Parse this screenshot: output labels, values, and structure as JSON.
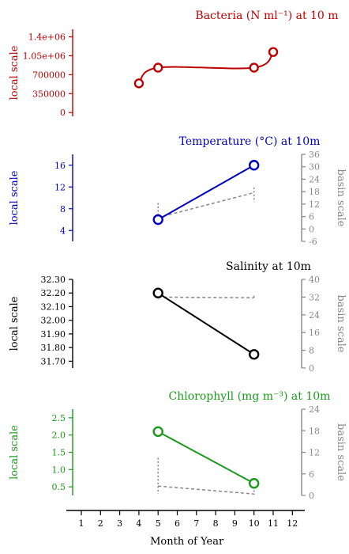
{
  "chart_data": [
    {
      "type": "line",
      "title": "Bacteria (N ml⁻¹) at 10 m",
      "ylabel": "local scale",
      "color": "#c00000",
      "ylim": [
        -70000,
        1540000
      ],
      "yticks": [
        "1.4e+06",
        "1.05e+06",
        "700000",
        "350000",
        "0"
      ],
      "ytick_values": [
        1400000,
        1050000,
        700000,
        350000,
        0
      ],
      "series": [
        {
          "x": [
            4,
            5,
            10,
            11
          ],
          "y": [
            540000,
            830000,
            830000,
            1120000
          ],
          "style": "smooth"
        }
      ]
    },
    {
      "type": "line",
      "title": "Temperature (°C) at 10m",
      "ylabel": "local scale",
      "ylabel_right": "basin scale",
      "color": "#0000c0",
      "ylim": [
        2,
        18
      ],
      "ylim_right": [
        -6,
        36
      ],
      "yticks": [
        "16",
        "12",
        "8",
        "4"
      ],
      "ytick_values": [
        16,
        12,
        8,
        4
      ],
      "yticks_right": [
        "36",
        "30",
        "24",
        "18",
        "12",
        "6",
        "0",
        "-6"
      ],
      "ytick_right_values": [
        36,
        30,
        24,
        18,
        12,
        6,
        0,
        -6
      ],
      "series": [
        {
          "x": [
            5,
            10
          ],
          "y": [
            6,
            16
          ]
        }
      ],
      "basin_series": [
        {
          "x": [
            5,
            10
          ],
          "y": [
            5.5,
            17.5
          ],
          "spread": [
            [
              3.0,
              12.5
            ],
            [
              13.0,
              20.0
            ]
          ]
        }
      ]
    },
    {
      "type": "line",
      "title": "Salinity at 10m",
      "ylabel": "local scale",
      "ylabel_right": "basin scale",
      "color": "#000000",
      "ylim": [
        31.65,
        32.3
      ],
      "ylim_right": [
        0,
        40
      ],
      "yticks": [
        "32.30",
        "32.20",
        "32.10",
        "32.00",
        "31.90",
        "31.80",
        "31.70"
      ],
      "ytick_values": [
        32.3,
        32.2,
        32.1,
        32.0,
        31.9,
        31.8,
        31.7
      ],
      "yticks_right": [
        "40",
        "32",
        "24",
        "16",
        "8",
        "0"
      ],
      "ytick_right_values": [
        40,
        32,
        24,
        16,
        8,
        0
      ],
      "series": [
        {
          "x": [
            5,
            10
          ],
          "y": [
            32.2,
            31.75
          ]
        }
      ],
      "basin_series": [
        {
          "x": [
            5,
            10
          ],
          "y": [
            32.0,
            31.7
          ],
          "spread": [
            [
              31.0,
              32.8
            ],
            [
              31.0,
              32.6
            ]
          ]
        }
      ]
    },
    {
      "type": "line",
      "title": "Chlorophyll (mg m⁻³) at 10m",
      "ylabel": "local scale",
      "ylabel_right": "basin scale",
      "color": "#1a9a1a",
      "ylim": [
        0.25,
        2.75
      ],
      "ylim_right": [
        0,
        24
      ],
      "yticks": [
        "2.5",
        "2.0",
        "1.5",
        "1.0",
        "0.5"
      ],
      "ytick_values": [
        2.5,
        2.0,
        1.5,
        1.0,
        0.5
      ],
      "yticks_right": [
        "24",
        "18",
        "12",
        "6",
        "0"
      ],
      "ytick_right_values": [
        24,
        18,
        12,
        6,
        0
      ],
      "series": [
        {
          "x": [
            5,
            10
          ],
          "y": [
            2.1,
            0.6
          ]
        }
      ],
      "basin_series": [
        {
          "x": [
            5,
            10
          ],
          "y": [
            2.6,
            0.4
          ],
          "spread": [
            [
              0.5,
              10.5
            ],
            [
              0.2,
              1.4
            ]
          ]
        }
      ]
    }
  ],
  "xaxis": {
    "label": "Month of Year",
    "ticks": [
      "1",
      "2",
      "3",
      "4",
      "5",
      "6",
      "7",
      "8",
      "9",
      "10",
      "11",
      "12"
    ],
    "xlim": [
      0.5,
      12.5
    ]
  },
  "colors": {
    "basin": "#888888"
  }
}
